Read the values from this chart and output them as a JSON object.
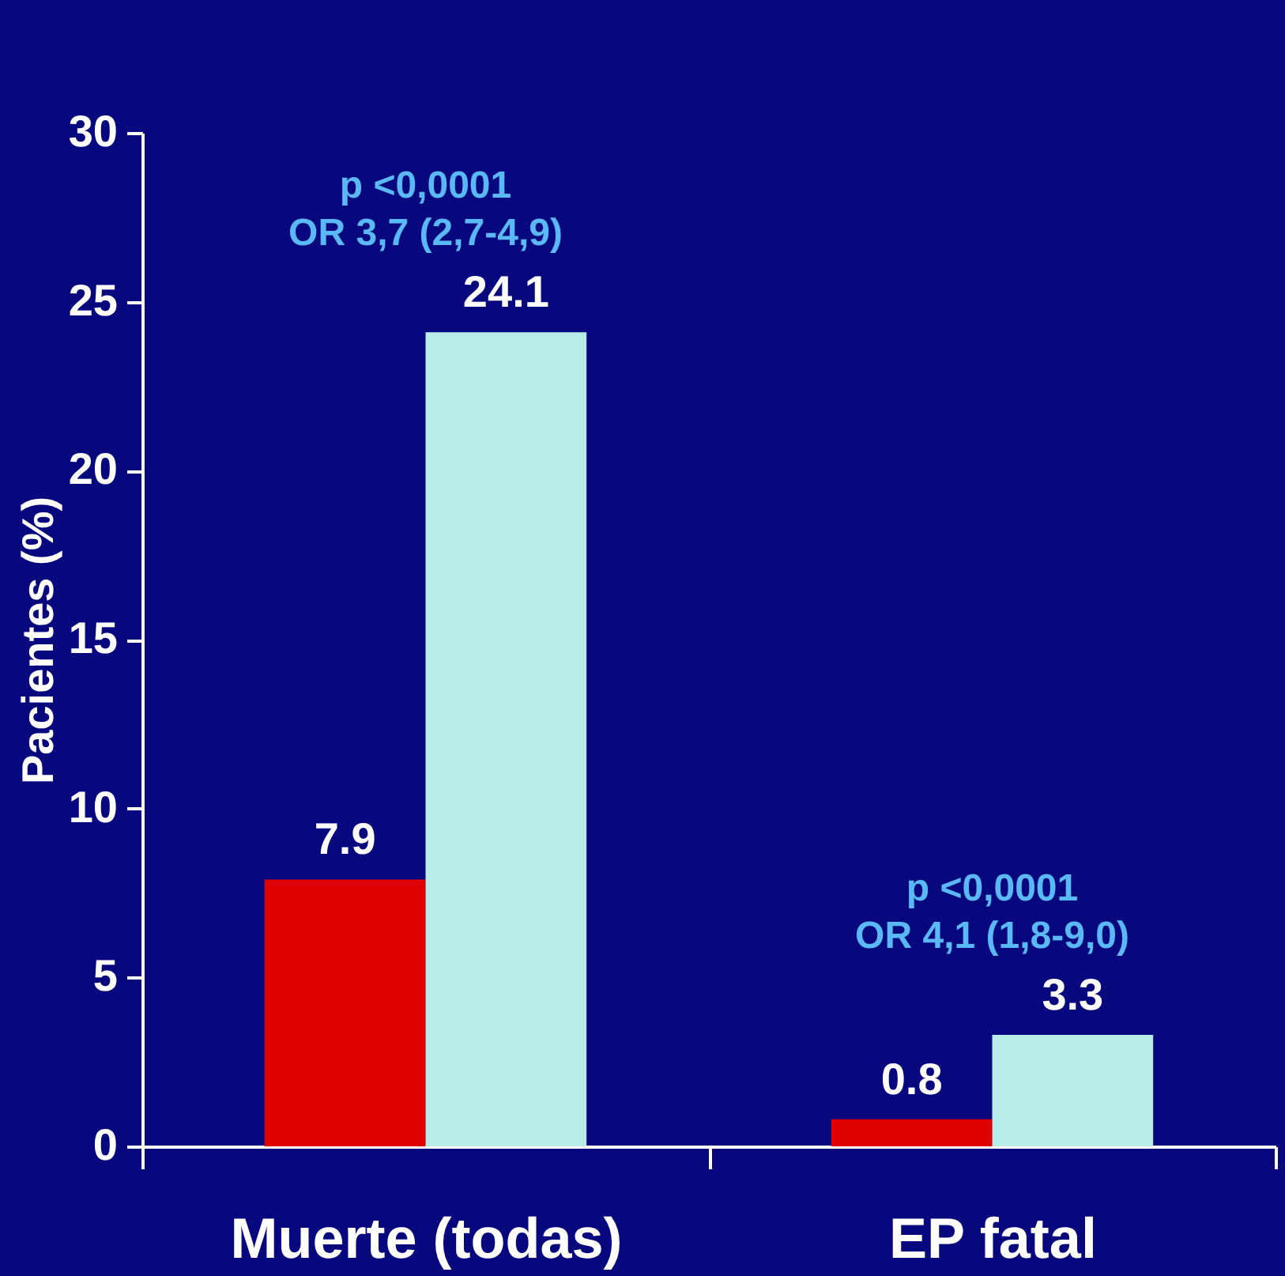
{
  "chart_data": {
    "type": "bar",
    "ylabel": "Pacientes (%)",
    "categories": [
      "Muerte (todas)",
      "EP fatal"
    ],
    "series": [
      {
        "color": "#e00000",
        "values": [
          7.9,
          0.8
        ]
      },
      {
        "color": "#b8ece8",
        "values": [
          24.1,
          3.3
        ]
      }
    ],
    "ylim": [
      0,
      30
    ],
    "yticks": [
      0,
      5,
      10,
      15,
      20,
      25,
      30
    ],
    "grid": false,
    "legend": false,
    "data_labels": true,
    "annotations": [
      "p <0,0001\nOR 3,7 (2,7-4,9)",
      "p <0,0001\nOR 4,1 (1,8-9,0)"
    ]
  }
}
